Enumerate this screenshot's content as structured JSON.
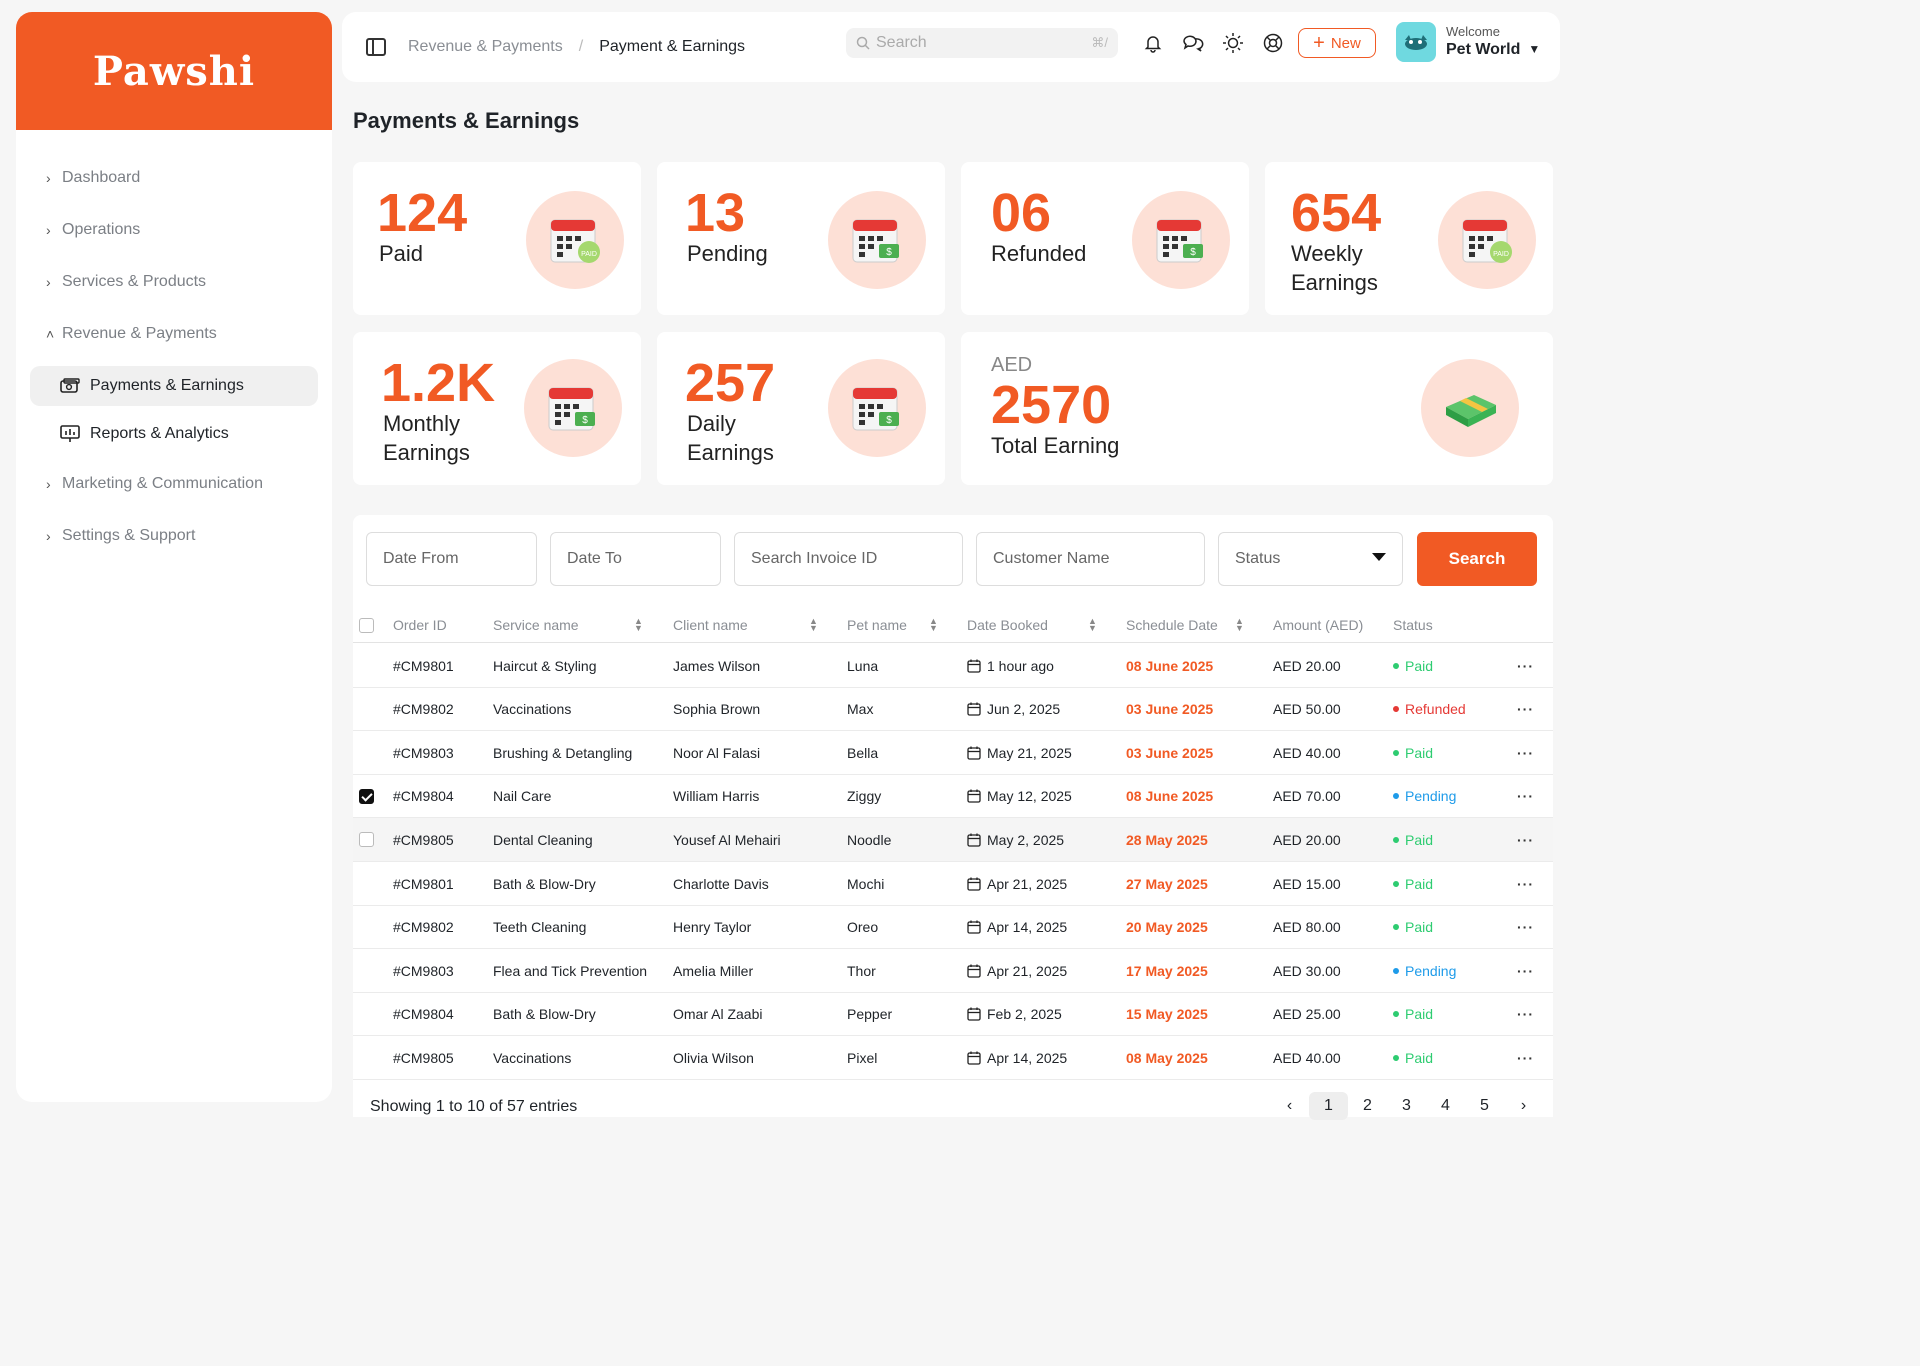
{
  "brand": {
    "name": "Pawshi",
    "accent": "#f15a24"
  },
  "sidebar": {
    "items": [
      {
        "label": "Dashboard",
        "icon": "chevron-right-icon"
      },
      {
        "label": "Operations",
        "icon": "chevron-right-icon"
      },
      {
        "label": "Services & Products",
        "icon": "chevron-right-icon"
      },
      {
        "label": "Revenue & Payments",
        "icon": "chevron-up-icon"
      }
    ],
    "sub_items": [
      {
        "label": "Payments & Earnings",
        "icon": "wallet-icon",
        "active": true
      },
      {
        "label": "Reports & Analytics",
        "icon": "presentation-chart-icon",
        "active": false
      }
    ],
    "bottom_items": [
      {
        "label": "Marketing & Communication",
        "icon": "chevron-right-icon"
      },
      {
        "label": "Settings & Support",
        "icon": "chevron-right-icon"
      }
    ]
  },
  "header": {
    "breadcrumb": [
      "Revenue & Payments",
      "Payment & Earnings"
    ],
    "breadcrumb_sep": "/",
    "search_placeholder": "Search",
    "search_shortcut": "⌘/",
    "new_label": "New",
    "welcome": "Welcome",
    "user_name": "Pet World"
  },
  "page": {
    "title": "Payments & Earnings"
  },
  "stats": [
    {
      "value": "124",
      "label": "Paid",
      "icon": "calendar-paid-icon"
    },
    {
      "value": "13",
      "label": "Pending",
      "icon": "calendar-cash-icon"
    },
    {
      "value": "06",
      "label": "Refunded",
      "icon": "calendar-cash-icon"
    },
    {
      "value": "654",
      "label_l1": "Weekly",
      "label_l2": "Earnings",
      "icon": "calendar-paid-icon"
    },
    {
      "value": "1.2K",
      "label_l1": "Monthly",
      "label_l2": "Earnings",
      "icon": "calendar-cash-icon"
    },
    {
      "value": "257",
      "label_l1": "Daily",
      "label_l2": "Earnings",
      "icon": "calendar-cash-icon"
    },
    {
      "currency": "AED",
      "value": "2570",
      "label": "Total Earning",
      "icon": "money-stack-icon"
    }
  ],
  "filters": {
    "date_from": "Date From",
    "date_to": "Date To",
    "invoice": "Search Invoice ID",
    "customer": "Customer Name",
    "status": "Status",
    "search_label": "Search"
  },
  "table": {
    "columns": [
      "Order ID",
      "Service name",
      "Client name",
      "Pet name",
      "Date Booked",
      "Schedule Date",
      "Amount (AED)",
      "Status"
    ],
    "rows": [
      {
        "id": "#CM9801",
        "service": "Haircut & Styling",
        "client": "James Wilson",
        "pet": "Luna",
        "booked": "1 hour ago",
        "schedule": "08 June 2025",
        "amount": "AED 20.00",
        "status": "Paid"
      },
      {
        "id": "#CM9802",
        "service": "Vaccinations",
        "client": "Sophia Brown",
        "pet": "Max",
        "booked": "Jun 2, 2025",
        "schedule": "03 June 2025",
        "amount": "AED 50.00",
        "status": "Refunded"
      },
      {
        "id": "#CM9803",
        "service": "Brushing & Detangling",
        "client": "Noor Al Falasi",
        "pet": "Bella",
        "booked": "May 21, 2025",
        "schedule": "03 June 2025",
        "amount": "AED 40.00",
        "status": "Paid"
      },
      {
        "id": "#CM9804",
        "service": "Nail Care",
        "client": "William Harris",
        "pet": "Ziggy",
        "booked": "May 12, 2025",
        "schedule": "08 June 2025",
        "amount": "AED 70.00",
        "status": "Pending"
      },
      {
        "id": "#CM9805",
        "service": "Dental Cleaning",
        "client": "Yousef Al Mehairi",
        "pet": "Noodle",
        "booked": "May 2, 2025",
        "schedule": "28 May 2025",
        "amount": "AED 20.00",
        "status": "Paid"
      },
      {
        "id": "#CM9801",
        "service": "Bath & Blow-Dry",
        "client": "Charlotte Davis",
        "pet": "Mochi",
        "booked": "Apr 21, 2025",
        "schedule": "27 May 2025",
        "amount": "AED 15.00",
        "status": "Paid"
      },
      {
        "id": "#CM9802",
        "service": "Teeth Cleaning",
        "client": "Henry Taylor",
        "pet": "Oreo",
        "booked": "Apr 14, 2025",
        "schedule": "20 May 2025",
        "amount": "AED 80.00",
        "status": "Paid"
      },
      {
        "id": "#CM9803",
        "service": "Flea and Tick Prevention",
        "client": "Amelia Miller",
        "pet": "Thor",
        "booked": "Apr 21, 2025",
        "schedule": "17 May 2025",
        "amount": "AED 30.00",
        "status": "Pending"
      },
      {
        "id": "#CM9804",
        "service": "Bath & Blow-Dry",
        "client": "Omar Al Zaabi",
        "pet": "Pepper",
        "booked": "Feb 2, 2025",
        "schedule": "15 May 2025",
        "amount": "AED 25.00",
        "status": "Paid"
      },
      {
        "id": "#CM9805",
        "service": "Vaccinations",
        "client": "Olivia Wilson",
        "pet": "Pixel",
        "booked": "Apr 14, 2025",
        "schedule": "08 May 2025",
        "amount": "AED 40.00",
        "status": "Paid"
      }
    ],
    "status_colors": {
      "Paid": "#2ecc71",
      "Refunded": "#e53935",
      "Pending": "#1e9be9"
    },
    "more_label": "···"
  },
  "pagination": {
    "summary": "Showing 1 to 10 of 57 entries",
    "pages": [
      "1",
      "2",
      "3",
      "4",
      "5"
    ],
    "current": "1",
    "prev": "‹",
    "next": "›"
  }
}
